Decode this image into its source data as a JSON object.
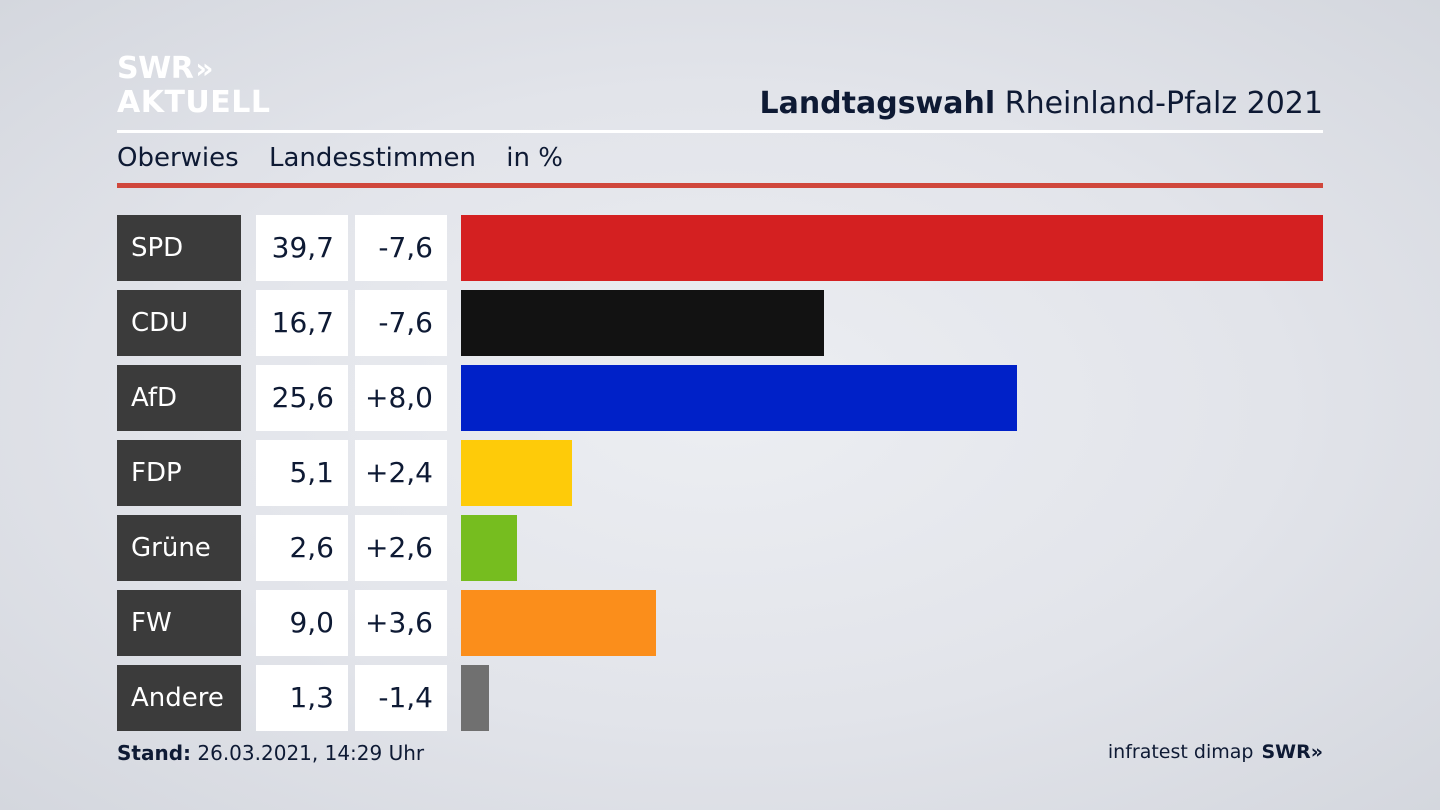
{
  "logo": {
    "line1": "SWR",
    "chevrons": "»",
    "line2": "AKTUELL"
  },
  "header": {
    "title_bold": "Landtagswahl",
    "title_rest": "Rheinland-Pfalz 2021"
  },
  "subtitle": {
    "place": "Oberwies",
    "vote_type": "Landesstimmen",
    "unit": "in %"
  },
  "footer": {
    "stand_label": "Stand:",
    "stand_value": "26.03.2021, 14:29 Uhr",
    "source": "infratest dimap",
    "brand": "SWR",
    "brand_chevrons": "»"
  },
  "colors": {
    "rule_red": "#d0473c",
    "party_label_bg": "#3b3b3b"
  },
  "chart_data": {
    "type": "bar",
    "orientation": "horizontal",
    "categories": [
      "SPD",
      "CDU",
      "AfD",
      "FDP",
      "Grüne",
      "FW",
      "Andere"
    ],
    "values": [
      39.7,
      16.7,
      25.6,
      5.1,
      2.6,
      9.0,
      1.3
    ],
    "value_labels": [
      "39,7",
      "16,7",
      "25,6",
      "5,1",
      "2,6",
      "9,0",
      "1,3"
    ],
    "changes": [
      -7.6,
      -7.6,
      8.0,
      2.4,
      2.6,
      3.6,
      -1.4
    ],
    "change_labels": [
      "-7,6",
      "-7,6",
      "+8,0",
      "+2,4",
      "+2,6",
      "+3,6",
      "-1,4"
    ],
    "colors": [
      "#d42021",
      "#121212",
      "#0021c8",
      "#fecb09",
      "#76bd1f",
      "#fb8e1b",
      "#707070"
    ],
    "xlim": [
      0,
      39.7
    ]
  }
}
